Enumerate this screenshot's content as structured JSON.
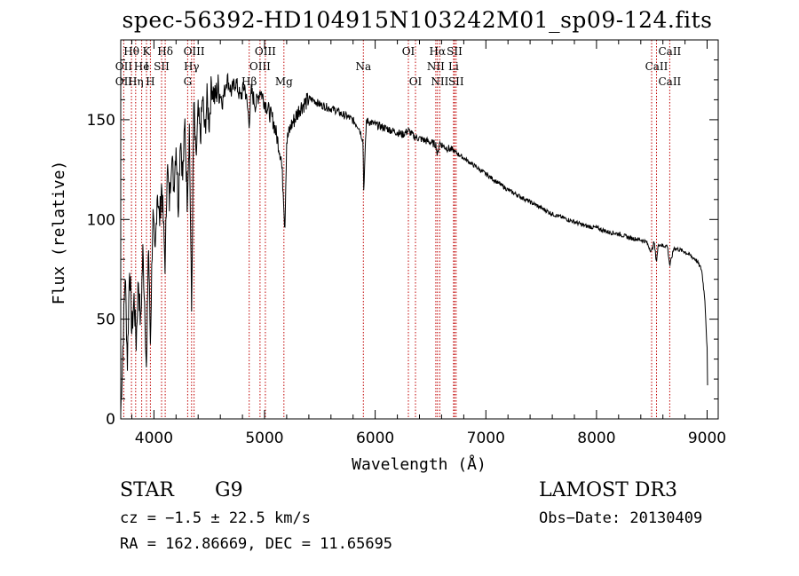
{
  "chart_data": {
    "type": "line",
    "title": "spec-56392-HD104915N103242M01_sp09-124.fits",
    "xlabel": "Wavelength (Å)",
    "ylabel": "Flux (relative)",
    "xlim": [
      3700,
      9100
    ],
    "ylim": [
      0,
      190
    ],
    "xticks": [
      4000,
      5000,
      6000,
      7000,
      8000,
      9000
    ],
    "yticks": [
      0,
      50,
      100,
      150
    ],
    "series": [
      {
        "name": "flux",
        "color": "#000000",
        "x": [
          3700,
          3720,
          3740,
          3760,
          3780,
          3800,
          3820,
          3840,
          3860,
          3880,
          3900,
          3920,
          3933,
          3950,
          3968,
          3990,
          4010,
          4030,
          4050,
          4070,
          4090,
          4102,
          4120,
          4140,
          4160,
          4180,
          4200,
          4220,
          4240,
          4260,
          4280,
          4300,
          4320,
          4340,
          4360,
          4380,
          4400,
          4420,
          4440,
          4460,
          4480,
          4500,
          4520,
          4550,
          4580,
          4620,
          4660,
          4700,
          4740,
          4780,
          4820,
          4861,
          4880,
          4920,
          4960,
          5000,
          5040,
          5080,
          5120,
          5150,
          5172,
          5183,
          5200,
          5240,
          5280,
          5320,
          5360,
          5400,
          5450,
          5500,
          5550,
          5600,
          5650,
          5700,
          5750,
          5800,
          5850,
          5890,
          5896,
          5920,
          5960,
          6000,
          6050,
          6100,
          6150,
          6200,
          6250,
          6300,
          6350,
          6400,
          6450,
          6500,
          6550,
          6563,
          6580,
          6620,
          6660,
          6700,
          6750,
          6800,
          6850,
          6900,
          6950,
          7000,
          7100,
          7200,
          7300,
          7400,
          7500,
          7600,
          7700,
          7800,
          7900,
          8000,
          8100,
          8200,
          8300,
          8400,
          8450,
          8498,
          8520,
          8542,
          8560,
          8600,
          8640,
          8662,
          8700,
          8750,
          8800,
          8850,
          8900,
          8950,
          8980,
          9000,
          9005
        ],
        "y": [
          5,
          38,
          75,
          30,
          80,
          45,
          62,
          40,
          72,
          48,
          85,
          55,
          22,
          92,
          40,
          105,
          80,
          118,
          100,
          120,
          92,
          78,
          130,
          110,
          135,
          118,
          140,
          108,
          145,
          122,
          150,
          112,
          148,
          55,
          160,
          130,
          155,
          142,
          163,
          145,
          162,
          150,
          170,
          162,
          168,
          160,
          172,
          165,
          170,
          162,
          168,
          150,
          165,
          158,
          166,
          160,
          155,
          150,
          140,
          132,
          112,
          96,
          140,
          148,
          152,
          157,
          159,
          161,
          160,
          158,
          157,
          156,
          155,
          153,
          152,
          150,
          147,
          140,
          115,
          150,
          149,
          148,
          147,
          146,
          145,
          144,
          143,
          145,
          142,
          141,
          140,
          139,
          138,
          132,
          139,
          137,
          136,
          135,
          133,
          131,
          129,
          127,
          125,
          123,
          119,
          115,
          112,
          109,
          106,
          103,
          101,
          99,
          97,
          96,
          94,
          93,
          91,
          90,
          89,
          84,
          89,
          79,
          88,
          87,
          87,
          77,
          86,
          85,
          84,
          82,
          80,
          75,
          60,
          35,
          12
        ]
      }
    ],
    "line_labels": [
      {
        "text": "Hθ",
        "x": 3797,
        "row": 0
      },
      {
        "text": "K",
        "x": 3933,
        "row": 0
      },
      {
        "text": "Hδ",
        "x": 4102,
        "row": 0
      },
      {
        "text": "OIII",
        "x": 4363,
        "row": 0
      },
      {
        "text": "OIII",
        "x": 5007,
        "row": 0
      },
      {
        "text": "OI",
        "x": 6300,
        "row": 0
      },
      {
        "text": "Hα",
        "x": 6563,
        "row": 0
      },
      {
        "text": "SII",
        "x": 6717,
        "row": 0
      },
      {
        "text": "CaII",
        "x": 8662,
        "row": 0
      },
      {
        "text": "OII",
        "x": 3727,
        "row": 1
      },
      {
        "text": "He",
        "x": 3889,
        "row": 1
      },
      {
        "text": "I",
        "x": 3934,
        "row": 1
      },
      {
        "text": "SII",
        "x": 4069,
        "row": 1
      },
      {
        "text": "Hγ",
        "x": 4340,
        "row": 1
      },
      {
        "text": "OIII",
        "x": 4959,
        "row": 1
      },
      {
        "text": "Na",
        "x": 5893,
        "row": 1
      },
      {
        "text": "NII",
        "x": 6548,
        "row": 1
      },
      {
        "text": "Li",
        "x": 6708,
        "row": 1
      },
      {
        "text": "CaII",
        "x": 8542,
        "row": 1
      },
      {
        "text": "OII",
        "x": 3727,
        "row": 2
      },
      {
        "text": "Hη",
        "x": 3835,
        "row": 2
      },
      {
        "text": "H",
        "x": 3968,
        "row": 2
      },
      {
        "text": "G",
        "x": 4305,
        "row": 2
      },
      {
        "text": "Hβ",
        "x": 4861,
        "row": 2
      },
      {
        "text": "Mg",
        "x": 5175,
        "row": 2
      },
      {
        "text": "OI",
        "x": 6364,
        "row": 2
      },
      {
        "text": "NII",
        "x": 6584,
        "row": 2
      },
      {
        "text": "SII",
        "x": 6731,
        "row": 2
      },
      {
        "text": "CaII",
        "x": 8662,
        "row": 2
      }
    ],
    "line_markers": [
      3727,
      3797,
      3835,
      3889,
      3933,
      3968,
      4069,
      4102,
      4305,
      4340,
      4363,
      4861,
      4959,
      5007,
      5175,
      5893,
      6300,
      6364,
      6548,
      6563,
      6584,
      6708,
      6717,
      6731,
      8498,
      8542,
      8662
    ],
    "marker_color": "#c00000"
  },
  "info": {
    "class": "STAR",
    "subclass": "G9",
    "survey": "LAMOST DR3",
    "cz": "cz = −1.5 ± 22.5 km/s",
    "obs_date": "Obs−Date: 20130409",
    "coords": "RA = 162.86669, DEC =  11.65695"
  }
}
